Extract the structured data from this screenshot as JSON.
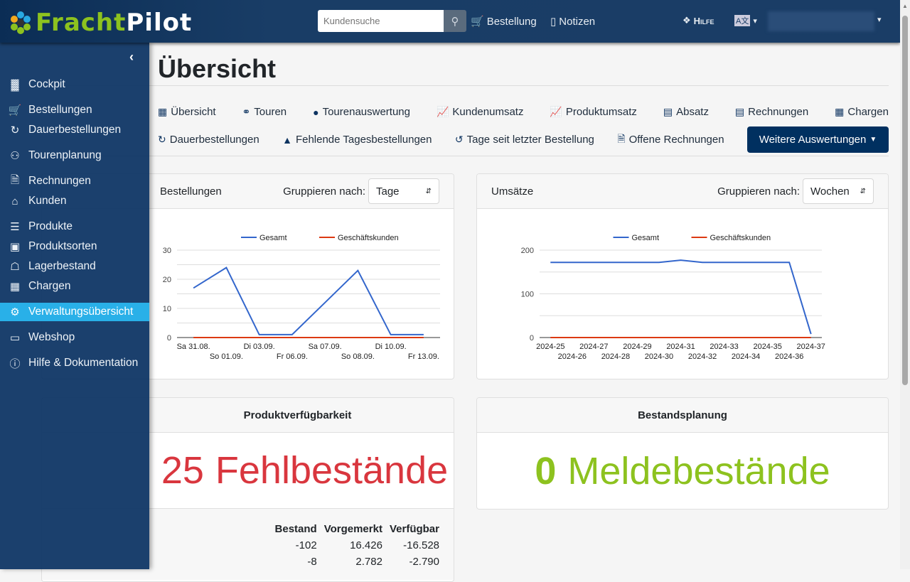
{
  "header": {
    "logo_part1": "Fracht",
    "logo_part2": "Pilot",
    "search_placeholder": "Kundensuche",
    "order": "Bestellung",
    "notes": "Notizen",
    "help": "Hilfe",
    "lang_icon": "A文"
  },
  "page": {
    "title": "Übersicht"
  },
  "tabs_row1": [
    {
      "label": "Übersicht",
      "icon": "chart-icon"
    },
    {
      "label": "Touren",
      "icon": "route-icon"
    },
    {
      "label": "Tourenauswertung",
      "icon": "gauge-icon"
    },
    {
      "label": "Kundenumsatz",
      "icon": "line-chart-icon"
    },
    {
      "label": "Produktumsatz",
      "icon": "line-chart-icon"
    },
    {
      "label": "Absatz",
      "icon": "abacus-icon"
    },
    {
      "label": "Rechnungen",
      "icon": "abacus-icon"
    },
    {
      "label": "Chargen",
      "icon": "pallet-icon"
    }
  ],
  "tabs_row2": [
    {
      "label": "Dauerbestellungen",
      "icon": "redo-icon"
    },
    {
      "label": "Fehlende Tagesbestellungen",
      "icon": "warning-icon"
    },
    {
      "label": "Tage seit letzter Bestellung",
      "icon": "history-icon"
    },
    {
      "label": "Offene Rechnungen",
      "icon": "file-icon"
    }
  ],
  "more_button": "Weitere Auswertungen",
  "sidebar": {
    "items": [
      {
        "label": "Cockpit",
        "icon": "cockpit-icon"
      },
      {
        "label": "Bestellungen",
        "icon": "cart-icon"
      },
      {
        "label": "Dauerbestellungen",
        "icon": "redo-icon"
      },
      {
        "label": "Tourenplanung",
        "icon": "route-icon"
      },
      {
        "label": "Rechnungen",
        "icon": "file-icon"
      },
      {
        "label": "Kunden",
        "icon": "home-icon"
      },
      {
        "label": "Produkte",
        "icon": "box-icon"
      },
      {
        "label": "Produktsorten",
        "icon": "cookie-icon"
      },
      {
        "label": "Lagerbestand",
        "icon": "warehouse-icon"
      },
      {
        "label": "Chargen",
        "icon": "pallet-icon"
      },
      {
        "label": "Verwaltungsübersicht",
        "icon": "cogs-icon",
        "active": true
      },
      {
        "label": "Webshop",
        "icon": "store-icon"
      },
      {
        "label": "Hilfe & Dokumentation",
        "icon": "info-icon"
      }
    ]
  },
  "cards": {
    "orders": {
      "title": "Bestellungen",
      "group_label": "Gruppieren nach:",
      "group_value": "Tage"
    },
    "sales": {
      "title": "Umsätze",
      "group_label": "Gruppieren nach:",
      "group_value": "Wochen"
    },
    "availability": {
      "title": "Produktverfügbarkeit",
      "count": "25",
      "label": "Fehlbestände",
      "columns": [
        "Bestand",
        "Vorgemerkt",
        "Verfügbar"
      ],
      "rows": [
        [
          "-102",
          "16.426",
          "-16.528"
        ],
        [
          "-8",
          "2.782",
          "-2.790"
        ]
      ]
    },
    "stock": {
      "title": "Bestandsplanung",
      "count": "0",
      "label": "Meldebestände"
    }
  },
  "chart_data": [
    {
      "type": "line",
      "title": "Bestellungen",
      "categories": [
        "Sa 31.08.",
        "So 01.09.",
        "Di 03.09.",
        "Fr 06.09.",
        "Sa 07.09.",
        "So 08.09.",
        "Di 10.09.",
        "Fr 13.09."
      ],
      "series": [
        {
          "name": "Gesamt",
          "color": "#3366cc",
          "values": [
            17,
            24,
            1,
            1,
            12,
            23,
            1,
            1
          ]
        },
        {
          "name": "Geschäftskunden",
          "color": "#dc3912",
          "values": [
            0,
            0,
            0,
            0,
            0,
            0,
            0,
            0
          ]
        }
      ],
      "yticks": [
        0,
        10,
        20,
        30
      ],
      "ylim": [
        0,
        30
      ],
      "legend": "top"
    },
    {
      "type": "line",
      "title": "Umsätze",
      "categories": [
        "2024-25",
        "2024-26",
        "2024-27",
        "2024-28",
        "2024-29",
        "2024-30",
        "2024-31",
        "2024-32",
        "2024-33",
        "2024-34",
        "2024-35",
        "2024-36",
        "2024-37"
      ],
      "series": [
        {
          "name": "Gesamt",
          "color": "#3366cc",
          "values": [
            172,
            172,
            172,
            172,
            172,
            172,
            177,
            172,
            172,
            172,
            172,
            172,
            8
          ]
        },
        {
          "name": "Geschäftskunden",
          "color": "#dc3912",
          "values": [
            0,
            0,
            0,
            0,
            0,
            0,
            0,
            0,
            0,
            0,
            0,
            0,
            0
          ]
        }
      ],
      "yticks": [
        0,
        100,
        200
      ],
      "ylim": [
        0,
        200
      ],
      "legend": "top"
    }
  ]
}
